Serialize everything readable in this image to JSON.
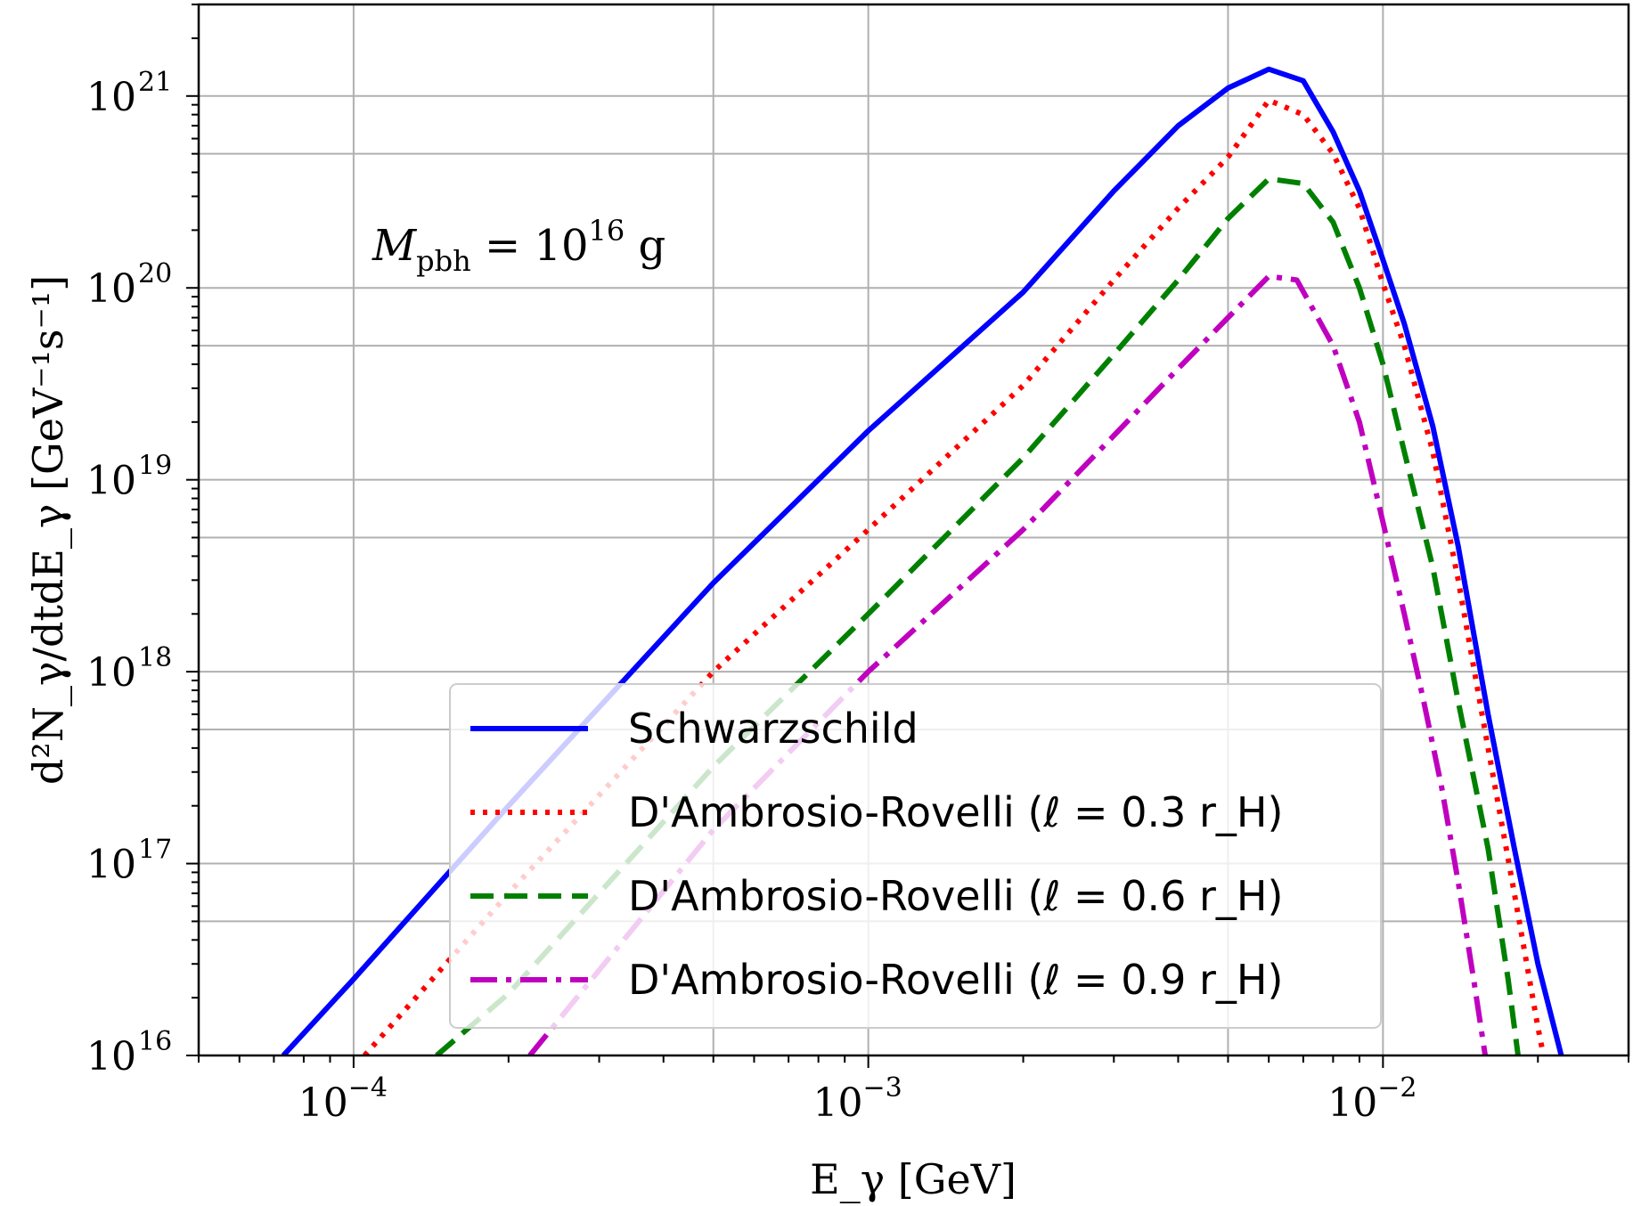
{
  "chart_data": {
    "type": "line",
    "title": "",
    "xlabel": "E_γ [GeV]",
    "ylabel": "d²N_γ/dtdE_γ [GeV⁻¹s⁻¹]",
    "xscale": "log",
    "yscale": "log",
    "xlim": [
      5e-05,
      0.03
    ],
    "ylim": [
      1e+16,
      3e+21
    ],
    "grid": true,
    "legend_position": "lower-center",
    "annotation": {
      "base": "M",
      "sub": "pbh",
      "eq": " = 10",
      "sup": "16",
      "unit": " g"
    },
    "x_ticks": [
      {
        "base": "10",
        "exp": "−4",
        "value": 0.0001
      },
      {
        "base": "10",
        "exp": "−3",
        "value": 0.001
      },
      {
        "base": "10",
        "exp": "−2",
        "value": 0.01
      }
    ],
    "y_ticks": [
      {
        "base": "10",
        "exp": "16",
        "value": 1e+16
      },
      {
        "base": "10",
        "exp": "17",
        "value": 1e+17
      },
      {
        "base": "10",
        "exp": "18",
        "value": 1e+18
      },
      {
        "base": "10",
        "exp": "19",
        "value": 1e+19
      },
      {
        "base": "10",
        "exp": "20",
        "value": 1e+20
      },
      {
        "base": "10",
        "exp": "21",
        "value": 1e+21
      }
    ],
    "series": [
      {
        "name": "Schwarzschild",
        "color": "#0000ff",
        "dash": "solid",
        "points": [
          [
            7.3e-05,
            1e+16
          ],
          [
            0.0001,
            2.5e+16
          ],
          [
            0.0002,
            2e+17
          ],
          [
            0.0005,
            2.9e+18
          ],
          [
            0.001,
            1.8e+19
          ],
          [
            0.002,
            9.5e+19
          ],
          [
            0.003,
            3.2e+20
          ],
          [
            0.004,
            7e+20
          ],
          [
            0.005,
            1.1e+21
          ],
          [
            0.006,
            1.38e+21
          ],
          [
            0.007,
            1.2e+21
          ],
          [
            0.008,
            6.5e+20
          ],
          [
            0.009,
            3.2e+20
          ],
          [
            0.01,
            1.4e+20
          ],
          [
            0.011,
            6.5e+19
          ],
          [
            0.0125,
            1.9e+19
          ],
          [
            0.014,
            4.5e+18
          ],
          [
            0.016,
            6e+17
          ],
          [
            0.018,
            1.2e+17
          ],
          [
            0.02,
            3e+16
          ],
          [
            0.0222,
            1e+16
          ]
        ]
      },
      {
        "name": "D'Ambrosio-Rovelli (ℓ = 0.3 r_H)",
        "color": "#ff0000",
        "dash": "dotted",
        "points": [
          [
            0.000105,
            1e+16
          ],
          [
            0.0002,
            7e+16
          ],
          [
            0.0005,
            1e+18
          ],
          [
            0.001,
            5.5e+18
          ],
          [
            0.002,
            3.1e+19
          ],
          [
            0.003,
            1.1e+20
          ],
          [
            0.004,
            2.6e+20
          ],
          [
            0.005,
            4.8e+20
          ],
          [
            0.006,
            9.5e+20
          ],
          [
            0.007,
            8e+20
          ],
          [
            0.008,
            5e+20
          ],
          [
            0.009,
            2.6e+20
          ],
          [
            0.01,
            1.05e+20
          ],
          [
            0.011,
            5e+19
          ],
          [
            0.0125,
            1.4e+19
          ],
          [
            0.014,
            3e+18
          ],
          [
            0.016,
            4e+17
          ],
          [
            0.018,
            7e+16
          ],
          [
            0.02,
            1.4e+16
          ],
          [
            0.0205,
            1e+16
          ]
        ]
      },
      {
        "name": "D'Ambrosio-Rovelli (ℓ = 0.6 r_H)",
        "color": "#008000",
        "dash": "dashed",
        "points": [
          [
            0.000145,
            1e+16
          ],
          [
            0.0002,
            2.1e+16
          ],
          [
            0.0005,
            3.2e+17
          ],
          [
            0.001,
            2e+18
          ],
          [
            0.002,
            1.3e+19
          ],
          [
            0.003,
            4.5e+19
          ],
          [
            0.004,
            1.1e+20
          ],
          [
            0.005,
            2.3e+20
          ],
          [
            0.006,
            3.7e+20
          ],
          [
            0.007,
            3.5e+20
          ],
          [
            0.008,
            2.2e+20
          ],
          [
            0.009,
            1e+20
          ],
          [
            0.01,
            4e+19
          ],
          [
            0.011,
            1.4e+19
          ],
          [
            0.0125,
            3.5e+18
          ],
          [
            0.014,
            7e+17
          ],
          [
            0.016,
            1.2e+17
          ],
          [
            0.0175,
            2.5e+16
          ],
          [
            0.0183,
            1e+16
          ]
        ]
      },
      {
        "name": "D'Ambrosio-Rovelli (ℓ = 0.9 r_H)",
        "color": "#bf00bf",
        "dash": "dashdot",
        "points": [
          [
            0.00022,
            1e+16
          ],
          [
            0.0005,
            1.5e+17
          ],
          [
            0.001,
            1e+18
          ],
          [
            0.002,
            5.5e+18
          ],
          [
            0.003,
            1.7e+19
          ],
          [
            0.004,
            3.8e+19
          ],
          [
            0.005,
            7e+19
          ],
          [
            0.006,
            1.15e+20
          ],
          [
            0.0068,
            1.1e+20
          ],
          [
            0.008,
            5e+19
          ],
          [
            0.009,
            2e+19
          ],
          [
            0.01,
            6e+18
          ],
          [
            0.011,
            2e+18
          ],
          [
            0.012,
            7e+17
          ],
          [
            0.013,
            2.5e+17
          ],
          [
            0.014,
            8e+16
          ],
          [
            0.015,
            2.5e+16
          ],
          [
            0.0158,
            1e+16
          ]
        ]
      }
    ]
  }
}
